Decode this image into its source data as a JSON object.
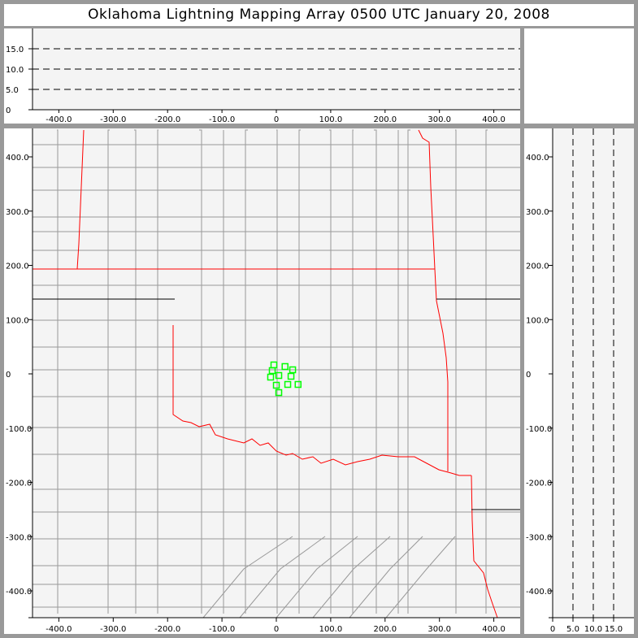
{
  "title": "Oklahoma Lightning Mapping Array   0500 UTC  January 20, 2008",
  "colors": {
    "plot_background": "#f4f4f4",
    "county_lines": "#999999",
    "state_borders": "#ff0000",
    "lightning_sources": "#00ff00",
    "frame": "#999999"
  },
  "top_panel": {
    "x_ticks": [
      "-400.0",
      "-300.0",
      "-200.0",
      "-100.0",
      "0",
      "100.0",
      "200.0",
      "300.0",
      "400.0"
    ],
    "x_values": [
      -400,
      -300,
      -200,
      -100,
      0,
      100,
      200,
      300,
      400
    ],
    "z_ticks": [
      "0",
      "5.0",
      "10.0",
      "15.0"
    ],
    "z_values": [
      0,
      5,
      10,
      15
    ],
    "dashed_reference_levels": [
      5,
      10,
      15
    ]
  },
  "map_panel": {
    "x_ticks": [
      "-400.0",
      "-300.0",
      "-200.0",
      "-100.0",
      "0",
      "100.0",
      "200.0",
      "300.0",
      "400.0"
    ],
    "x_values": [
      -400,
      -300,
      -200,
      -100,
      0,
      100,
      200,
      300,
      400
    ],
    "y_ticks": [
      "400.0",
      "300.0",
      "200.0",
      "100.0",
      "0",
      "-100.0",
      "-200.0",
      "-300.0",
      "-400.0"
    ],
    "y_values": [
      400,
      300,
      200,
      100,
      0,
      -100,
      -200,
      -300,
      -400
    ],
    "xlim": [
      -450,
      450
    ],
    "ylim": [
      -450,
      450
    ],
    "lightning_sources_km": [
      [
        -4.5,
        16.5
      ],
      [
        16,
        13.5
      ],
      [
        -7.5,
        6
      ],
      [
        30,
        7.5
      ],
      [
        -10.5,
        -6
      ],
      [
        4.5,
        -3
      ],
      [
        27,
        -4.5
      ],
      [
        0,
        -21
      ],
      [
        21,
        -19.5
      ],
      [
        40,
        -19.5
      ],
      [
        4.5,
        -34.5
      ]
    ]
  },
  "right_panel": {
    "y_ticks": [
      "400.0",
      "300.0",
      "200.0",
      "100.0",
      "0",
      "-100.0",
      "-200.0",
      "-300.0",
      "-400.0"
    ],
    "z_ticks": [
      "0",
      "5.0",
      "10.0",
      "15.0"
    ],
    "z_values": [
      0,
      5,
      10,
      15
    ],
    "dashed_reference_levels": [
      5,
      10,
      15
    ]
  }
}
